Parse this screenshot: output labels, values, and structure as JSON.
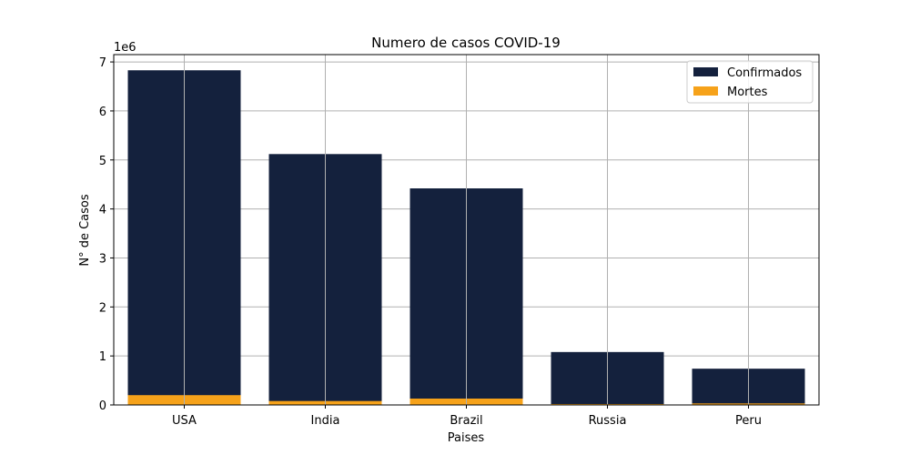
{
  "chart_data": {
    "type": "bar",
    "stacked": "overlay",
    "title": "Numero de casos COVID-19",
    "xlabel": "Paises",
    "ylabel": "N° de Casos",
    "y_offset_label": "1e6",
    "categories": [
      "USA",
      "India",
      "Brazil",
      "Russia",
      "Peru"
    ],
    "series": [
      {
        "name": "Confirmados",
        "color": "#14213d",
        "values": [
          6830000,
          5120000,
          4420000,
          1080000,
          740000
        ]
      },
      {
        "name": "Mortes",
        "color": "#f6a21a",
        "values": [
          200000,
          80000,
          130000,
          19000,
          31000
        ]
      }
    ],
    "ylim": [
      0,
      7150000
    ],
    "yticks": [
      0,
      1,
      2,
      3,
      4,
      5,
      6,
      7
    ],
    "grid": true,
    "legend_position": "top-right"
  }
}
